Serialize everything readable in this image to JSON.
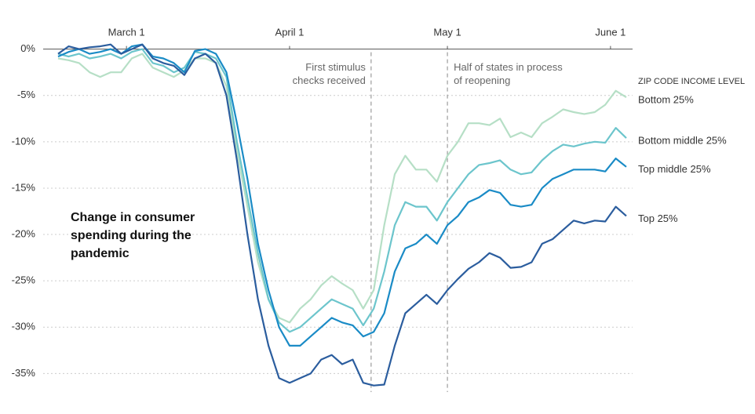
{
  "chart_data": {
    "type": "line",
    "title": "Change in consumer spending during the pandemic",
    "legend_title": "ZIP CODE INCOME LEVEL",
    "x": [
      -13,
      -11,
      -9,
      -7,
      -5,
      -3,
      -1,
      1,
      3,
      5,
      7,
      9,
      11,
      13,
      15,
      17,
      19,
      21,
      23,
      25,
      27,
      29,
      31,
      33,
      35,
      37,
      39,
      41,
      43,
      45,
      47,
      49,
      51,
      53,
      55,
      57,
      59,
      61,
      63,
      65,
      67,
      69,
      71,
      73,
      75,
      77,
      79,
      81,
      83,
      85,
      87,
      89,
      91,
      93,
      95
    ],
    "xlim": [
      -13,
      95
    ],
    "xticks": [
      {
        "value": 0,
        "label": "March 1"
      },
      {
        "value": 31,
        "label": "April 1"
      },
      {
        "value": 61,
        "label": "May 1"
      },
      {
        "value": 92,
        "label": "June 1"
      }
    ],
    "ylim": [
      -37,
      2
    ],
    "yticks": [
      {
        "value": 0,
        "label": "0%"
      },
      {
        "value": -5,
        "label": "-5%"
      },
      {
        "value": -10,
        "label": "-10%"
      },
      {
        "value": -15,
        "label": "-15%"
      },
      {
        "value": -20,
        "label": "-20%"
      },
      {
        "value": -25,
        "label": "-25%"
      },
      {
        "value": -30,
        "label": "-30%"
      },
      {
        "value": -35,
        "label": "-35%"
      }
    ],
    "grid": true,
    "annotations": [
      {
        "text": "First stimulus checks received",
        "x": 46.5,
        "align": "right"
      },
      {
        "text": "Half of states in process of reopening",
        "x": 61,
        "align": "left"
      }
    ],
    "series": [
      {
        "name": "Bottom 25%",
        "color": "#b6dfc6",
        "values": [
          -1,
          -1.2,
          -1.5,
          -2.5,
          -3,
          -2.5,
          -2.5,
          -1,
          -0.5,
          -2,
          -2.5,
          -3,
          -2.3,
          -1,
          -1,
          -1.5,
          -4,
          -11,
          -17,
          -23,
          -27,
          -29,
          -29.5,
          -28,
          -27,
          -25.5,
          -24.5,
          -25.3,
          -26,
          -28,
          -26,
          -19,
          -13.5,
          -11.5,
          -13,
          -13,
          -14.3,
          -11.5,
          -10,
          -8,
          -8,
          -8.2,
          -7.5,
          -9.5,
          -9,
          -9.5,
          -8,
          -7.3,
          -6.5,
          -6.8,
          -7,
          -6.8,
          -6,
          -4.5,
          -5.2
        ]
      },
      {
        "name": "Bottom middle 25%",
        "color": "#6cc5cc",
        "values": [
          -0.5,
          -0.8,
          -0.5,
          -1,
          -0.8,
          -0.5,
          -1,
          -0.3,
          0,
          -1.5,
          -1.8,
          -2.5,
          -2,
          -0.3,
          -0.5,
          -1,
          -3,
          -10,
          -16,
          -22,
          -27,
          -29.5,
          -30.5,
          -30,
          -29,
          -28,
          -27,
          -27.5,
          -28,
          -29.8,
          -28,
          -24,
          -19,
          -16.5,
          -17,
          -17,
          -18.5,
          -16.5,
          -15,
          -13.5,
          -12.5,
          -12.3,
          -12,
          -13,
          -13.5,
          -13.3,
          -12,
          -11,
          -10.3,
          -10.5,
          -10.2,
          -10,
          -10.1,
          -8.5,
          -9.6
        ]
      },
      {
        "name": "Top middle 25%",
        "color": "#1a8bc6",
        "values": [
          -0.8,
          -0.3,
          0,
          -0.5,
          -0.3,
          0,
          -0.5,
          0.3,
          0.5,
          -0.8,
          -1,
          -1.5,
          -2.5,
          -0.2,
          0,
          -0.5,
          -2.5,
          -8,
          -14,
          -21,
          -26,
          -30,
          -32,
          -32,
          -31,
          -30,
          -29,
          -29.5,
          -29.8,
          -31,
          -30.5,
          -28.5,
          -24,
          -21.5,
          -21,
          -20,
          -21,
          -19,
          -18,
          -16.5,
          -16,
          -15.2,
          -15.5,
          -16.8,
          -17,
          -16.8,
          -15,
          -14,
          -13.5,
          -13,
          -13,
          -13,
          -13.2,
          -11.8,
          -12.7
        ]
      },
      {
        "name": "Top 25%",
        "color": "#2b5d9e",
        "values": [
          -0.5,
          0.3,
          0,
          0.2,
          0.3,
          0.5,
          -0.5,
          0,
          0.5,
          -1,
          -1.5,
          -1.8,
          -2.8,
          -1,
          -0.5,
          -1.5,
          -5,
          -12,
          -20,
          -27,
          -32,
          -35.5,
          -36,
          -35.5,
          -35,
          -33.5,
          -33,
          -34,
          -33.5,
          -36,
          -36.3,
          -36.2,
          -32,
          -28.5,
          -27.5,
          -26.5,
          -27.5,
          -26,
          -24.8,
          -23.7,
          -23,
          -22,
          -22.5,
          -23.6,
          -23.5,
          -23,
          -21,
          -20.5,
          -19.5,
          -18.5,
          -18.8,
          -18.5,
          -18.6,
          -17,
          -18
        ]
      }
    ]
  }
}
